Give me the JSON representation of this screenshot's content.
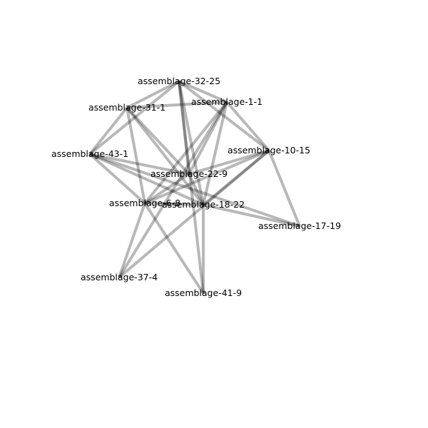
{
  "diagram": {
    "type": "network-graph",
    "nodes": [
      {
        "id": "assemblage-32-25",
        "label": "assemblage-32-25"
      },
      {
        "id": "assemblage-1-1",
        "label": "assemblage-1-1"
      },
      {
        "id": "assemblage-31-1",
        "label": "assemblage-31-1"
      },
      {
        "id": "assemblage-43-1",
        "label": "assemblage-43-1"
      },
      {
        "id": "assemblage-10-15",
        "label": "assemblage-10-15"
      },
      {
        "id": "assemblage-22-9",
        "label": "assemblage-22-9"
      },
      {
        "id": "assemblage-6-8",
        "label": "assemblage-6-8"
      },
      {
        "id": "assemblage-18-22",
        "label": "assemblage-18-22"
      },
      {
        "id": "assemblage-17-19",
        "label": "assemblage-17-19"
      },
      {
        "id": "assemblage-37-4",
        "label": "assemblage-37-4"
      },
      {
        "id": "assemblage-41-9",
        "label": "assemblage-41-9"
      }
    ],
    "edges": [
      [
        "assemblage-32-25",
        "assemblage-1-1"
      ],
      [
        "assemblage-32-25",
        "assemblage-31-1"
      ],
      [
        "assemblage-32-25",
        "assemblage-43-1"
      ],
      [
        "assemblage-32-25",
        "assemblage-10-15"
      ],
      [
        "assemblage-32-25",
        "assemblage-18-22"
      ],
      [
        "assemblage-32-25",
        "assemblage-41-9"
      ],
      [
        "assemblage-32-25",
        "assemblage-22-9"
      ],
      [
        "assemblage-1-1",
        "assemblage-31-1"
      ],
      [
        "assemblage-1-1",
        "assemblage-10-15"
      ],
      [
        "assemblage-1-1",
        "assemblage-6-8"
      ],
      [
        "assemblage-1-1",
        "assemblage-18-22"
      ],
      [
        "assemblage-1-1",
        "assemblage-22-9"
      ],
      [
        "assemblage-31-1",
        "assemblage-43-1"
      ],
      [
        "assemblage-31-1",
        "assemblage-6-8"
      ],
      [
        "assemblage-31-1",
        "assemblage-18-22"
      ],
      [
        "assemblage-31-1",
        "assemblage-22-9"
      ],
      [
        "assemblage-43-1",
        "assemblage-6-8"
      ],
      [
        "assemblage-43-1",
        "assemblage-18-22"
      ],
      [
        "assemblage-43-1",
        "assemblage-17-19"
      ],
      [
        "assemblage-43-1",
        "assemblage-22-9"
      ],
      [
        "assemblage-10-15",
        "assemblage-6-8"
      ],
      [
        "assemblage-10-15",
        "assemblage-18-22"
      ],
      [
        "assemblage-10-15",
        "assemblage-17-19"
      ],
      [
        "assemblage-10-15",
        "assemblage-37-4"
      ],
      [
        "assemblage-10-15",
        "assemblage-22-9"
      ],
      [
        "assemblage-22-9",
        "assemblage-6-8"
      ],
      [
        "assemblage-22-9",
        "assemblage-18-22"
      ],
      [
        "assemblage-6-8",
        "assemblage-18-22"
      ],
      [
        "assemblage-6-8",
        "assemblage-37-4"
      ],
      [
        "assemblage-6-8",
        "assemblage-41-9"
      ],
      [
        "assemblage-18-22",
        "assemblage-17-19"
      ],
      [
        "assemblage-18-22",
        "assemblage-41-9"
      ],
      [
        "assemblage-1-1",
        "assemblage-37-4"
      ]
    ],
    "colors": {
      "edge": "#000000",
      "label": "#000000",
      "background": "#ffffff"
    }
  }
}
